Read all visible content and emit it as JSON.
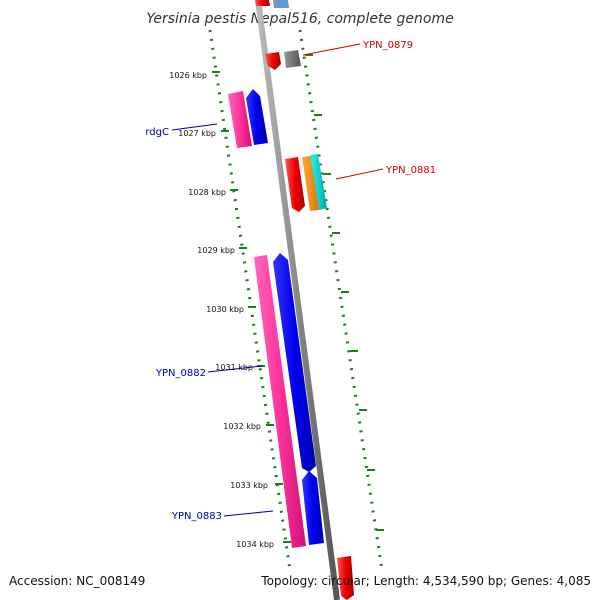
{
  "title": "Yersinia pestis Nepal516, complete genome",
  "footer": {
    "accession": "Accession: NC_008149",
    "summary": "Topology: circular; Length: 4,534,590 bp; Genes: 4,085"
  },
  "kbp_ticks": [
    "1026 kbp",
    "1027 kbp",
    "1028 kbp",
    "1029 kbp",
    "1030 kbp",
    "1031 kbp",
    "1032 kbp",
    "1033 kbp",
    "1034 kbp"
  ],
  "gene_labels": [
    {
      "text": "YPN_0879",
      "color": "#cc0000"
    },
    {
      "text": "YPN_0881",
      "color": "#cc0000"
    },
    {
      "text": "rdgC",
      "color": "#0000aa"
    },
    {
      "text": "YPN_0882",
      "color": "#0000aa"
    },
    {
      "text": "YPN_0883",
      "color": "#0000aa"
    }
  ],
  "colors": {
    "backbone": "#888888",
    "tick": "#1e7b1e",
    "red": "#ee0000",
    "pink": "#ff3399",
    "blue": "#0000ee",
    "gray": "#666666",
    "orange": "#ff8800",
    "cyan": "#00cccc",
    "steelblue": "#6699cc"
  }
}
